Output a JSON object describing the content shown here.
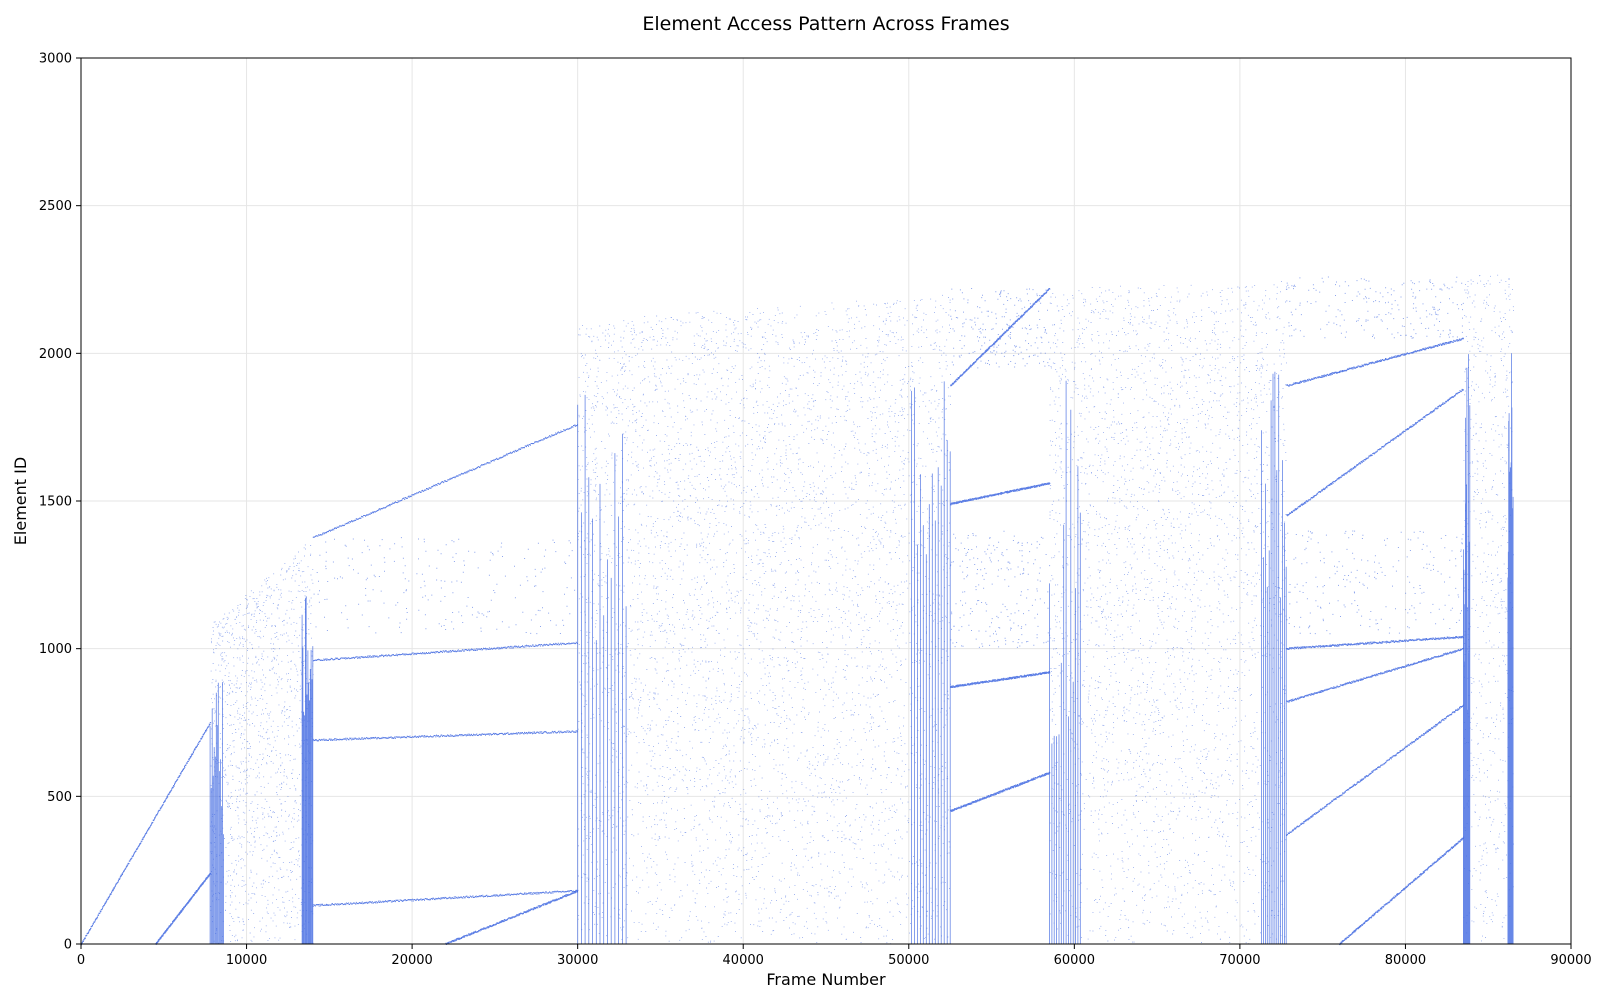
{
  "chart_data": {
    "type": "scatter",
    "title": "Element Access Pattern Across Frames",
    "xlabel": "Frame Number",
    "ylabel": "Element ID",
    "xlim": [
      0,
      90000
    ],
    "ylim": [
      0,
      3000
    ],
    "xticks": [
      0,
      10000,
      20000,
      30000,
      40000,
      50000,
      60000,
      70000,
      80000,
      90000
    ],
    "yticks": [
      0,
      500,
      1000,
      1500,
      2000,
      2500,
      3000
    ],
    "grid": true,
    "legend": "none",
    "color": "#4169e1",
    "series": [
      {
        "dense_blocks": [
          {
            "x": [
              7800,
              14000
            ],
            "y_bottom": 0,
            "top_start": 1080,
            "top_end": 1375
          },
          {
            "x": [
              30000,
              52500
            ],
            "y_bottom": 0,
            "top_start": 2110,
            "top_end": 2200
          },
          {
            "x": [
              58500,
              72800
            ],
            "y_bottom": 0,
            "top_start": 2220,
            "top_end": 2245
          },
          {
            "x": [
              83500,
              86500
            ],
            "y_bottom": 0,
            "top_start": 2265,
            "top_end": 2265
          }
        ],
        "sweep_lines": [
          {
            "x": [
              0,
              7800
            ],
            "y": [
              0,
              750
            ]
          },
          {
            "x": [
              4500,
              7800
            ],
            "y": [
              0,
              240
            ]
          },
          {
            "x": [
              14000,
              30000
            ],
            "y": [
              1375,
              1760
            ]
          },
          {
            "x": [
              14000,
              30000
            ],
            "y": [
              960,
              1020
            ]
          },
          {
            "x": [
              14000,
              30000
            ],
            "y": [
              690,
              720
            ]
          },
          {
            "x": [
              14000,
              30000
            ],
            "y": [
              130,
              180
            ]
          },
          {
            "x": [
              22000,
              30000
            ],
            "y": [
              0,
              180
            ]
          },
          {
            "x": [
              52500,
              58500
            ],
            "y": [
              1890,
              2220
            ]
          },
          {
            "x": [
              52500,
              58500
            ],
            "y": [
              1490,
              1560
            ]
          },
          {
            "x": [
              52500,
              58500
            ],
            "y": [
              870,
              920
            ]
          },
          {
            "x": [
              52500,
              58500
            ],
            "y": [
              450,
              580
            ]
          },
          {
            "x": [
              72800,
              83500
            ],
            "y": [
              1890,
              2050
            ]
          },
          {
            "x": [
              72800,
              83500
            ],
            "y": [
              1450,
              1880
            ]
          },
          {
            "x": [
              72800,
              83500
            ],
            "y": [
              1000,
              1040
            ]
          },
          {
            "x": [
              72800,
              83500
            ],
            "y": [
              820,
              1000
            ]
          },
          {
            "x": [
              72800,
              83500
            ],
            "y": [
              370,
              810
            ]
          },
          {
            "x": [
              76000,
              83500
            ],
            "y": [
              0,
              360
            ]
          }
        ]
      }
    ]
  }
}
